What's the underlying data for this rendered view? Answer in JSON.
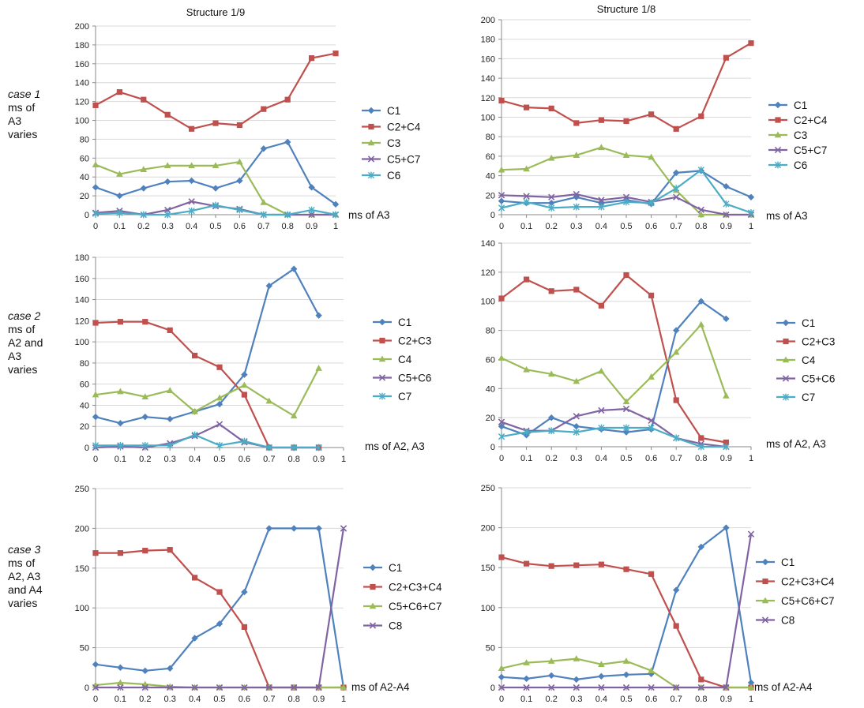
{
  "colors": {
    "series1": "#4F81BD",
    "series2": "#C0504D",
    "series3": "#9BBB59",
    "series4": "#8064A2",
    "series5": "#4BACC6",
    "axis": "#8A8A8A",
    "grid": "#D9D9D9"
  },
  "row_labels": [
    {
      "case": "case 1",
      "lines": [
        "ms of",
        "A3",
        "varies"
      ]
    },
    {
      "case": "case 2",
      "lines": [
        "ms of",
        "A2 and",
        "A3",
        "varies"
      ]
    },
    {
      "case": "case 3",
      "lines": [
        "ms of",
        "A2, A3",
        "and A4",
        "varies"
      ]
    }
  ],
  "chart_data": [
    {
      "type": "line",
      "title": "Structure 1/9",
      "xlabel": "ms of A3",
      "ylabel": "",
      "categories": [
        "0",
        "0.1",
        "0.2",
        "0.3",
        "0.4",
        "0.5",
        "0.6",
        "0.7",
        "0.8",
        "0.9",
        "1"
      ],
      "ylim": [
        0,
        200
      ],
      "yticks": [
        0,
        20,
        40,
        60,
        80,
        100,
        120,
        140,
        160,
        180,
        200
      ],
      "grid": true,
      "legend_position": "right",
      "series": [
        {
          "name": "C1",
          "marker": "diamond",
          "values": [
            29,
            20,
            28,
            35,
            36,
            28,
            36,
            70,
            77,
            29,
            11
          ]
        },
        {
          "name": "C2+C4",
          "marker": "square",
          "values": [
            116,
            130,
            122,
            106,
            91,
            97,
            95,
            112,
            122,
            166,
            171
          ]
        },
        {
          "name": "C3",
          "marker": "triangle",
          "values": [
            53,
            43,
            48,
            52,
            52,
            52,
            56,
            13,
            0,
            0,
            0
          ]
        },
        {
          "name": "C5+C7",
          "marker": "x",
          "values": [
            2,
            4,
            0,
            5,
            14,
            9,
            6,
            0,
            0,
            0,
            0
          ]
        },
        {
          "name": "C6",
          "marker": "star",
          "values": [
            1,
            2,
            0,
            0,
            4,
            10,
            5,
            0,
            0,
            5,
            0
          ]
        }
      ]
    },
    {
      "type": "line",
      "title": "Structure 1/8",
      "xlabel": "ms of A3",
      "ylabel": "",
      "categories": [
        "0",
        "0.1",
        "0.2",
        "0.3",
        "0.4",
        "0.5",
        "0.6",
        "0.7",
        "0.8",
        "0.9",
        "1"
      ],
      "ylim": [
        0,
        200
      ],
      "yticks": [
        0,
        20,
        40,
        60,
        80,
        100,
        120,
        140,
        160,
        180,
        200
      ],
      "grid": true,
      "legend_position": "right",
      "series": [
        {
          "name": "C1",
          "marker": "diamond",
          "values": [
            14,
            12,
            12,
            18,
            12,
            15,
            11,
            43,
            45,
            29,
            18
          ]
        },
        {
          "name": "C2+C4",
          "marker": "square",
          "values": [
            117,
            110,
            109,
            94,
            97,
            96,
            103,
            88,
            101,
            161,
            176
          ]
        },
        {
          "name": "C3",
          "marker": "triangle",
          "values": [
            46,
            47,
            58,
            61,
            69,
            61,
            59,
            25,
            0,
            0,
            0
          ]
        },
        {
          "name": "C5+C7",
          "marker": "x",
          "values": [
            20,
            19,
            18,
            21,
            15,
            18,
            13,
            18,
            5,
            0,
            0
          ]
        },
        {
          "name": "C6",
          "marker": "star",
          "values": [
            7,
            13,
            7,
            8,
            8,
            13,
            12,
            27,
            46,
            11,
            2
          ]
        }
      ]
    },
    {
      "type": "line",
      "title": "",
      "xlabel": "ms of A2, A3",
      "ylabel": "",
      "categories": [
        "0",
        "0.1",
        "0.2",
        "0.3",
        "0.4",
        "0.5",
        "0.6",
        "0.7",
        "0.8",
        "0.9",
        "1"
      ],
      "ylim": [
        0,
        180
      ],
      "yticks": [
        0,
        20,
        40,
        60,
        80,
        100,
        120,
        140,
        160,
        180
      ],
      "grid": true,
      "legend_position": "right",
      "series": [
        {
          "name": "C1",
          "marker": "diamond",
          "values": [
            29,
            23,
            29,
            27,
            34,
            41,
            69,
            153,
            169,
            125,
            null
          ]
        },
        {
          "name": "C2+C3",
          "marker": "square",
          "values": [
            118,
            119,
            119,
            111,
            87,
            76,
            50,
            0,
            0,
            0,
            null
          ]
        },
        {
          "name": "C4",
          "marker": "triangle",
          "values": [
            50,
            53,
            48,
            54,
            34,
            47,
            59,
            44,
            30,
            75,
            null
          ]
        },
        {
          "name": "C5+C6",
          "marker": "x",
          "values": [
            0,
            1,
            0,
            4,
            11,
            22,
            5,
            0,
            0,
            0,
            null
          ]
        },
        {
          "name": "C7",
          "marker": "star",
          "values": [
            2,
            2,
            2,
            2,
            12,
            2,
            6,
            0,
            0,
            0,
            null
          ]
        }
      ]
    },
    {
      "type": "line",
      "title": "",
      "xlabel": "ms of A2, A3",
      "ylabel": "",
      "categories": [
        "0",
        "0.1",
        "0.2",
        "0.3",
        "0.4",
        "0.5",
        "0.6",
        "0.7",
        "0.8",
        "0.9",
        "1"
      ],
      "ylim": [
        0,
        140
      ],
      "yticks": [
        0,
        20,
        40,
        60,
        80,
        100,
        120,
        140
      ],
      "grid": true,
      "legend_position": "right",
      "series": [
        {
          "name": "C1",
          "marker": "diamond",
          "values": [
            14,
            8,
            20,
            14,
            12,
            10,
            12,
            80,
            100,
            88,
            null
          ]
        },
        {
          "name": "C2+C3",
          "marker": "square",
          "values": [
            102,
            115,
            107,
            108,
            97,
            118,
            104,
            32,
            6,
            3,
            null
          ]
        },
        {
          "name": "C4",
          "marker": "triangle",
          "values": [
            61,
            53,
            50,
            45,
            52,
            31,
            48,
            65,
            84,
            35,
            null
          ]
        },
        {
          "name": "C5+C6",
          "marker": "x",
          "values": [
            17,
            11,
            11,
            21,
            25,
            26,
            18,
            6,
            2,
            0,
            null
          ]
        },
        {
          "name": "C7",
          "marker": "star",
          "values": [
            7,
            10,
            11,
            10,
            13,
            13,
            13,
            6,
            0,
            0,
            null
          ]
        }
      ]
    },
    {
      "type": "line",
      "title": "",
      "xlabel": "ms of A2-A4",
      "ylabel": "",
      "categories": [
        "0",
        "0.1",
        "0.2",
        "0.3",
        "0.4",
        "0.5",
        "0.6",
        "0.7",
        "0.8",
        "0.9",
        "1"
      ],
      "ylim": [
        0,
        250
      ],
      "yticks": [
        0,
        50,
        100,
        150,
        200,
        250
      ],
      "grid": true,
      "legend_position": "right",
      "series": [
        {
          "name": "C1",
          "marker": "diamond",
          "values": [
            29,
            25,
            21,
            24,
            62,
            80,
            120,
            200,
            200,
            200,
            0
          ]
        },
        {
          "name": "C2+C3+C4",
          "marker": "square",
          "values": [
            169,
            169,
            172,
            173,
            138,
            120,
            76,
            0,
            0,
            0,
            0
          ]
        },
        {
          "name": "C5+C6+C7",
          "marker": "triangle",
          "values": [
            3,
            6,
            4,
            1,
            0,
            0,
            0,
            0,
            0,
            0,
            0
          ]
        },
        {
          "name": "C8",
          "marker": "x",
          "values": [
            0,
            0,
            0,
            0,
            0,
            0,
            0,
            0,
            0,
            0,
            200
          ]
        }
      ]
    },
    {
      "type": "line",
      "title": "",
      "xlabel": "ms of A2-A4",
      "ylabel": "",
      "categories": [
        "0",
        "0.1",
        "0.2",
        "0.3",
        "0.4",
        "0.5",
        "0.6",
        "0.7",
        "0.8",
        "0.9",
        "1"
      ],
      "ylim": [
        0,
        250
      ],
      "yticks": [
        0,
        50,
        100,
        150,
        200,
        250
      ],
      "grid": true,
      "legend_position": "right",
      "series": [
        {
          "name": "C1",
          "marker": "diamond",
          "values": [
            13,
            11,
            15,
            10,
            14,
            16,
            17,
            122,
            176,
            200,
            6
          ]
        },
        {
          "name": "C2+C3+C4",
          "marker": "square",
          "values": [
            163,
            155,
            152,
            153,
            154,
            148,
            142,
            77,
            10,
            0,
            0
          ]
        },
        {
          "name": "C5+C6+C7",
          "marker": "triangle",
          "values": [
            24,
            31,
            33,
            36,
            29,
            33,
            21,
            0,
            0,
            0,
            0
          ]
        },
        {
          "name": "C8",
          "marker": "x",
          "values": [
            0,
            0,
            0,
            0,
            0,
            0,
            0,
            0,
            0,
            0,
            192
          ]
        }
      ]
    }
  ]
}
